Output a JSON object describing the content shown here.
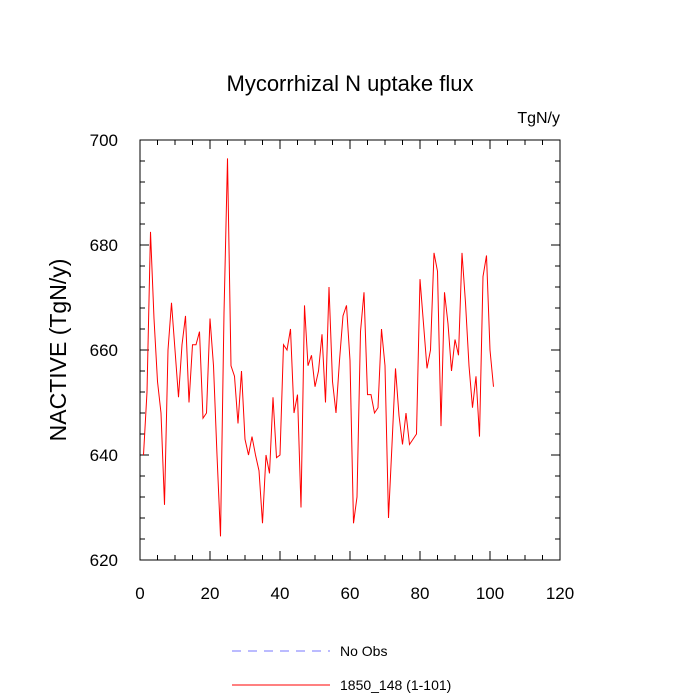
{
  "chart_data": {
    "type": "line",
    "title": "Mycorrhizal N uptake flux",
    "units_label": "TgN/y",
    "ylabel": "NACTIVE  (TgN/y)",
    "xlabel": "",
    "xlim": [
      0,
      120
    ],
    "ylim": [
      620,
      700
    ],
    "xticks": [
      0,
      20,
      40,
      60,
      80,
      100,
      120
    ],
    "yticks": [
      620,
      640,
      660,
      680,
      700
    ],
    "x_minor_step": 5,
    "y_minor_step": 4,
    "grid": false,
    "legend_position": "bottom-center",
    "series": [
      {
        "name": "1850_148 (1-101)",
        "color": "#ff0000",
        "style": "solid",
        "x_start": 1,
        "values": [
          640,
          652,
          682.5,
          666,
          654,
          648,
          630.5,
          660,
          669,
          660,
          651,
          661,
          666.5,
          650,
          661,
          661,
          663.5,
          647,
          648,
          666,
          657,
          640,
          624.5,
          667,
          696.5,
          657,
          655,
          646,
          656,
          643,
          640,
          643.5,
          640,
          637,
          627,
          640,
          636.5,
          651,
          639.5,
          640,
          661,
          660,
          664,
          648,
          651.5,
          630,
          668.5,
          657,
          659,
          653,
          656,
          663,
          650,
          672,
          654,
          648,
          658,
          666.5,
          668.5,
          658,
          627,
          632,
          663.5,
          671,
          651.5,
          651.5,
          648,
          649,
          664,
          657,
          628,
          642,
          656.5,
          647.5,
          642,
          648,
          642,
          643,
          644,
          673.5,
          665,
          656.5,
          660,
          678.5,
          675,
          645.5,
          671,
          665,
          656,
          662,
          659,
          678.5,
          669,
          657,
          649,
          655,
          643.5,
          674,
          678,
          660,
          653
        ]
      }
    ],
    "legend": [
      {
        "label": "No Obs",
        "color": "#7777ff",
        "style": "dashed"
      },
      {
        "label": "1850_148 (1-101)",
        "color": "#ff0000",
        "style": "solid"
      }
    ]
  }
}
